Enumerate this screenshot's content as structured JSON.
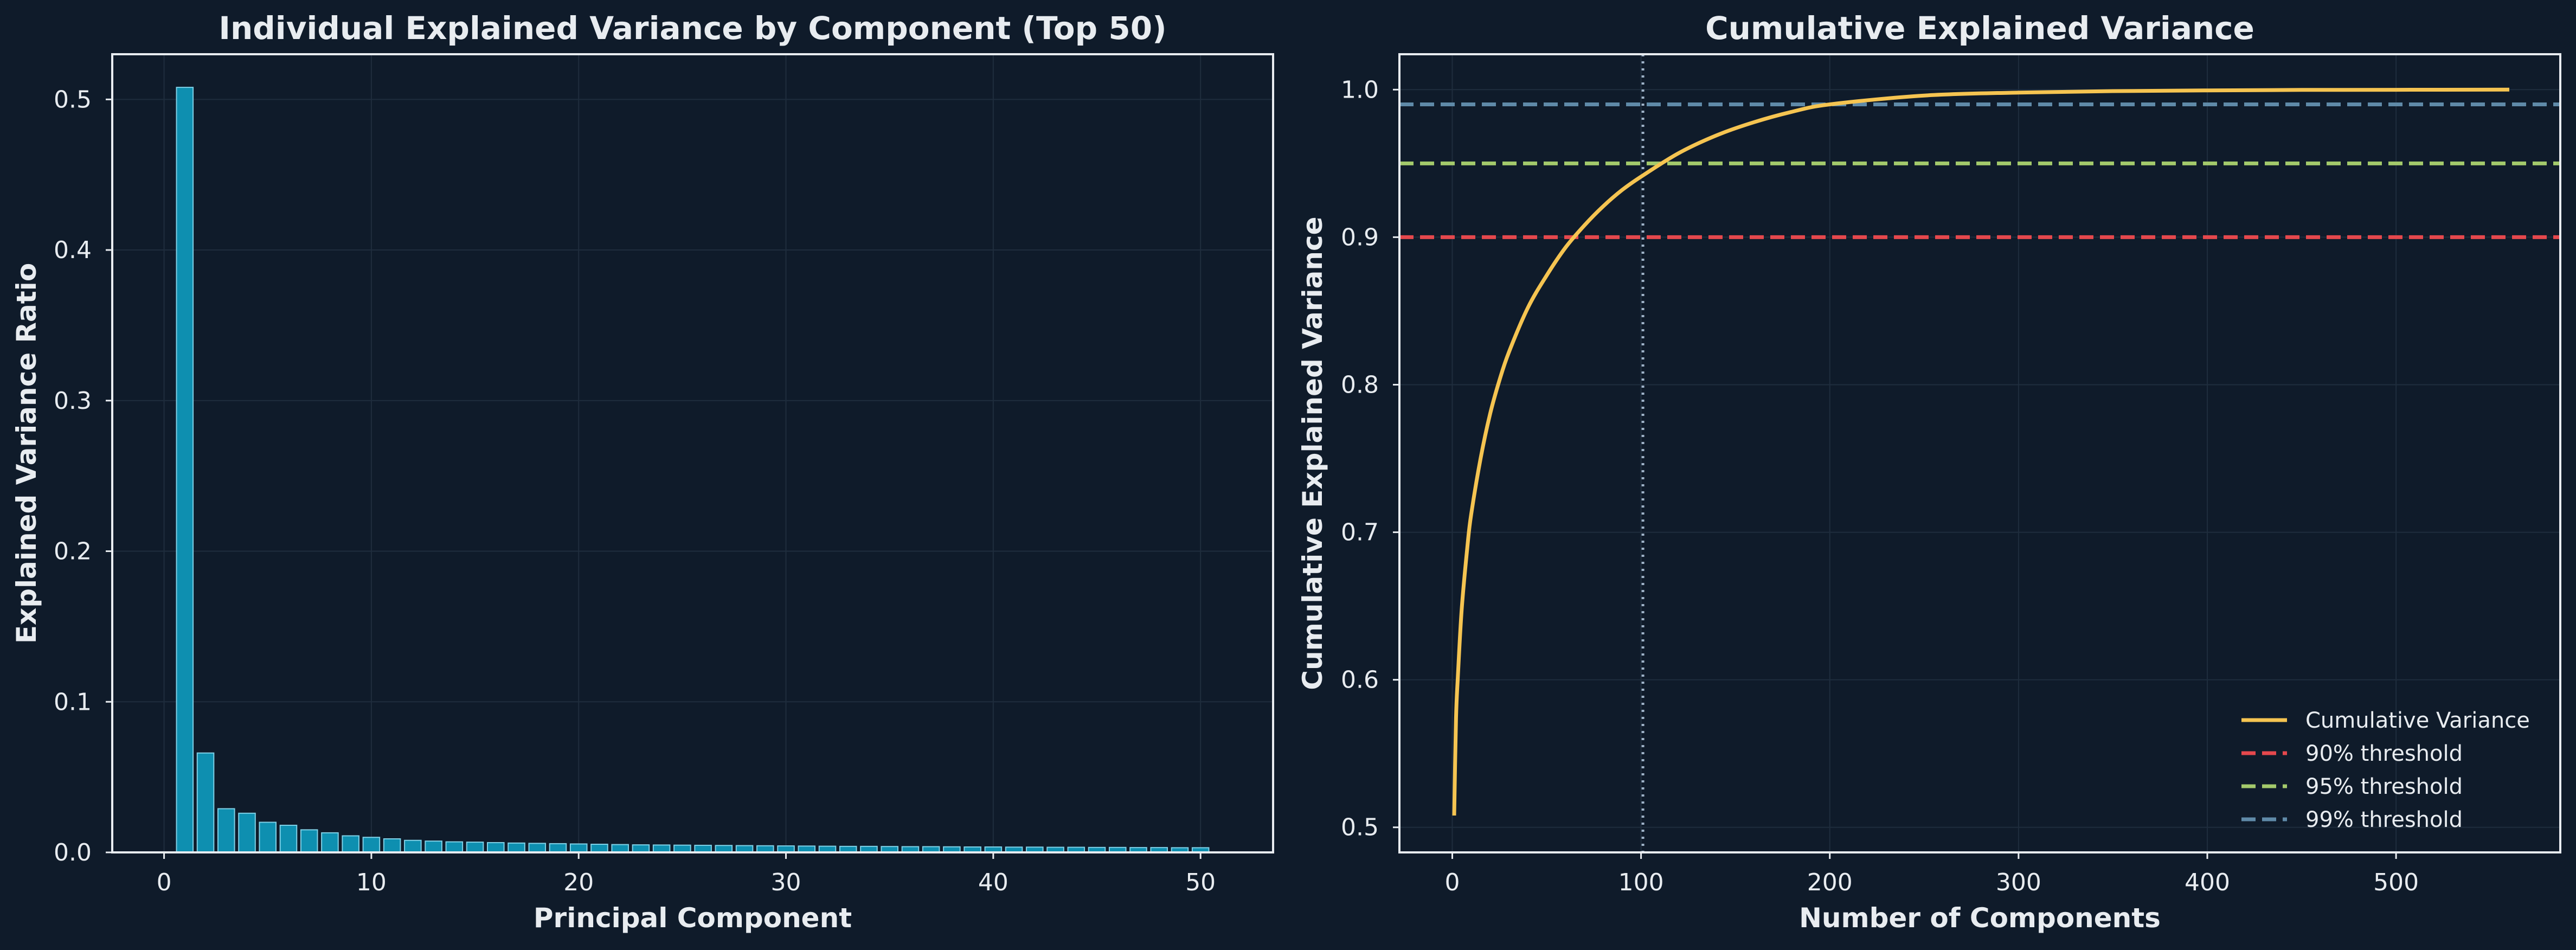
{
  "colors": {
    "background": "#0f1b2a",
    "bar_fill": "#0e8fb0",
    "bar_edge": "#7fd0e6",
    "cumulative": "#f5c451",
    "threshold_90": "#e5484d",
    "threshold_95": "#a3c96b",
    "threshold_99": "#5f8aa8",
    "vline": "#9fb3c8",
    "text": "#e8ecf0"
  },
  "chart_data": [
    {
      "type": "bar",
      "title": "Individual Explained Variance by Component (Top 50)",
      "xlabel": "Principal Component",
      "ylabel": "Explained Variance Ratio",
      "xlim": [
        -2.5,
        53.5
      ],
      "ylim": [
        0,
        0.53
      ],
      "xticks": [
        0,
        10,
        20,
        30,
        40,
        50
      ],
      "yticks": [
        0.0,
        0.1,
        0.2,
        0.3,
        0.4,
        0.5
      ],
      "xtick_labels": [
        "0",
        "10",
        "20",
        "30",
        "40",
        "50"
      ],
      "ytick_labels": [
        "0.0",
        "0.1",
        "0.2",
        "0.3",
        "0.4",
        "0.5"
      ],
      "grid": true,
      "x": [
        1,
        2,
        3,
        4,
        5,
        6,
        7,
        8,
        9,
        10,
        11,
        12,
        13,
        14,
        15,
        16,
        17,
        18,
        19,
        20,
        21,
        22,
        23,
        24,
        25,
        26,
        27,
        28,
        29,
        30,
        31,
        32,
        33,
        34,
        35,
        36,
        37,
        38,
        39,
        40,
        41,
        42,
        43,
        44,
        45,
        46,
        47,
        48,
        49,
        50
      ],
      "values": [
        0.508,
        0.066,
        0.029,
        0.026,
        0.02,
        0.018,
        0.015,
        0.013,
        0.011,
        0.01,
        0.009,
        0.008,
        0.0075,
        0.007,
        0.0068,
        0.0065,
        0.0062,
        0.006,
        0.0058,
        0.0056,
        0.0054,
        0.0052,
        0.005,
        0.0049,
        0.0048,
        0.0047,
        0.0046,
        0.0045,
        0.0044,
        0.0043,
        0.0042,
        0.0041,
        0.004,
        0.004,
        0.0039,
        0.0038,
        0.0038,
        0.0037,
        0.0036,
        0.0036,
        0.0035,
        0.0035,
        0.0034,
        0.0034,
        0.0033,
        0.0033,
        0.0032,
        0.0032,
        0.0031,
        0.0031
      ]
    },
    {
      "type": "line",
      "title": "Cumulative Explained Variance",
      "xlabel": "Number of Components",
      "ylabel": "Cumulative Explained Variance",
      "xlim": [
        -28,
        587
      ],
      "ylim": [
        0.483,
        1.024
      ],
      "xticks": [
        0,
        100,
        200,
        300,
        400,
        500
      ],
      "yticks": [
        0.5,
        0.6,
        0.7,
        0.8,
        0.9,
        1.0
      ],
      "xtick_labels": [
        "0",
        "100",
        "200",
        "300",
        "400",
        "500"
      ],
      "ytick_labels": [
        "0.5",
        "0.6",
        "0.7",
        "0.8",
        "0.9",
        "1.0"
      ],
      "grid": true,
      "legend_position": "lower right",
      "series": [
        {
          "name": "Cumulative Variance",
          "x": [
            1,
            2,
            3,
            5,
            8,
            10,
            15,
            20,
            25,
            30,
            40,
            50,
            60,
            70,
            80,
            90,
            100,
            120,
            140,
            160,
            180,
            200,
            250,
            300,
            350,
            400,
            450,
            500,
            560
          ],
          "values": [
            0.508,
            0.574,
            0.603,
            0.648,
            0.69,
            0.712,
            0.75,
            0.78,
            0.803,
            0.822,
            0.852,
            0.874,
            0.893,
            0.908,
            0.921,
            0.932,
            0.941,
            0.957,
            0.969,
            0.978,
            0.985,
            0.99,
            0.996,
            0.998,
            0.999,
            0.9995,
            0.9998,
            0.9999,
            1.0
          ]
        }
      ],
      "hlines": [
        {
          "name": "90% threshold",
          "y": 0.9,
          "color_key": "threshold_90"
        },
        {
          "name": "95% threshold",
          "y": 0.95,
          "color_key": "threshold_95"
        },
        {
          "name": "99% threshold",
          "y": 0.99,
          "color_key": "threshold_99"
        }
      ],
      "vline": {
        "x": 101
      }
    }
  ]
}
